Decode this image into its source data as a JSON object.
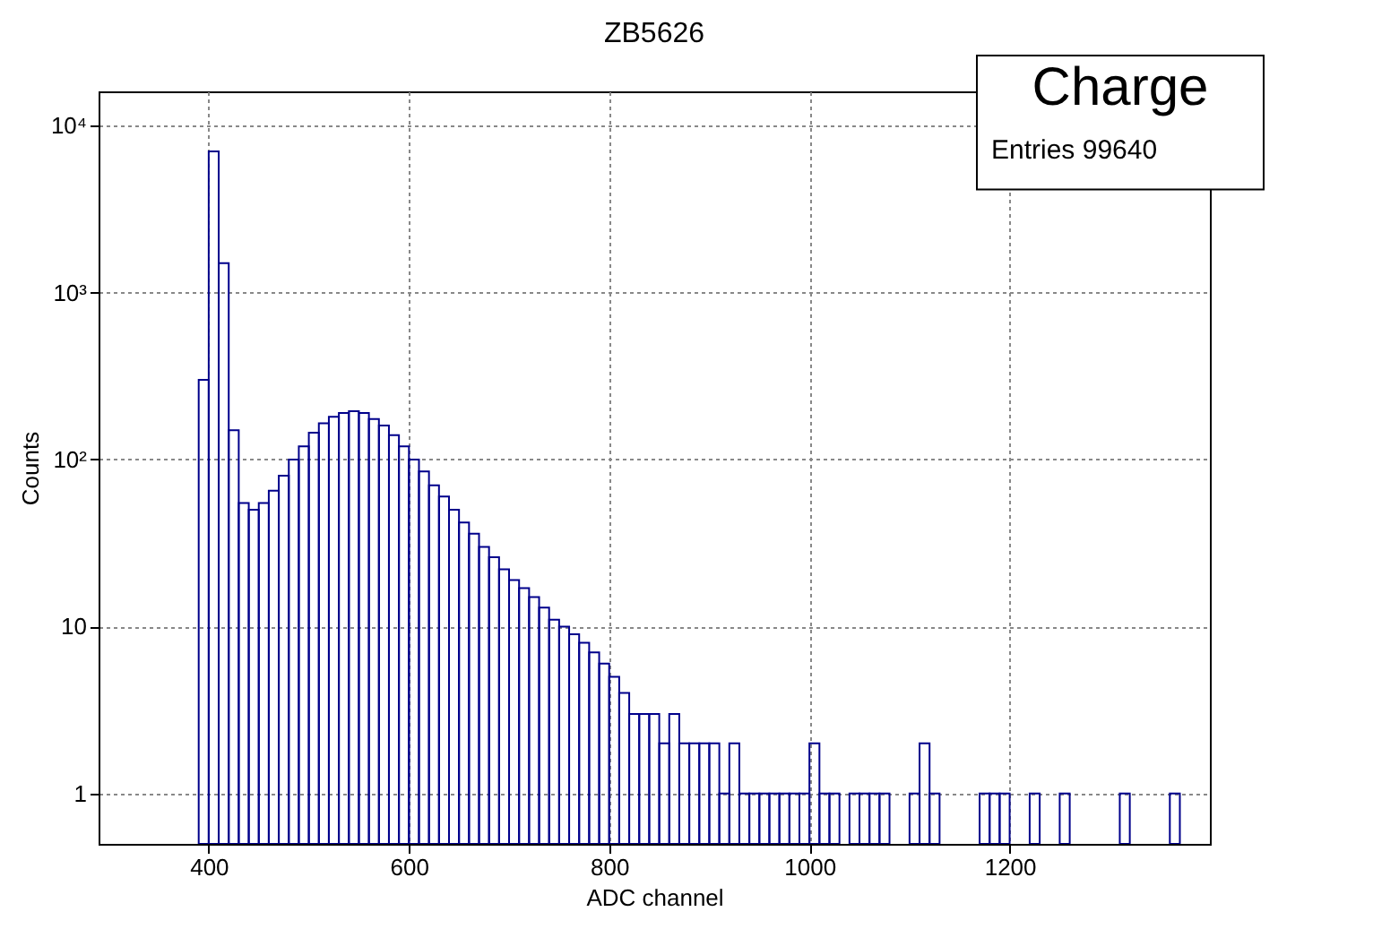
{
  "chart_data": {
    "type": "histogram",
    "title": "ZB5626",
    "xlabel": "ADC channel",
    "ylabel": "Counts",
    "annotations": [
      "Charge",
      "Entries   99640"
    ],
    "color": "#00008b",
    "log": "y",
    "grid": true,
    "xlim": [
      290,
      1400
    ],
    "xticks": [
      400,
      600,
      800,
      1000,
      1200
    ],
    "ylim": [
      0.5,
      16000
    ],
    "yticks": [
      1,
      10,
      {
        "value": 100,
        "label": "10²"
      },
      {
        "value": 1000,
        "label": "10³"
      },
      {
        "value": 10000,
        "label": "10⁴"
      }
    ],
    "bins": [
      290,
      300,
      310,
      320,
      330,
      340,
      350,
      360,
      370,
      380,
      390,
      400,
      410,
      420,
      430,
      440,
      450,
      460,
      470,
      480,
      490,
      500,
      510,
      520,
      530,
      540,
      550,
      560,
      570,
      580,
      590,
      600,
      610,
      620,
      630,
      640,
      650,
      660,
      670,
      680,
      690,
      700,
      710,
      720,
      730,
      740,
      750,
      760,
      770,
      780,
      790,
      800,
      810,
      820,
      830,
      840,
      850,
      860,
      870,
      880,
      890,
      900,
      910,
      920,
      930,
      940,
      950,
      960,
      970,
      980,
      990,
      1000,
      1010,
      1020,
      1030,
      1040,
      1050,
      1060,
      1070,
      1080,
      1090,
      1100,
      1110,
      1120,
      1130,
      1140,
      1150,
      1160,
      1170,
      1180,
      1190,
      1200,
      1210,
      1220,
      1230,
      1240,
      1250,
      1260,
      1270,
      1280,
      1290,
      1300,
      1310,
      1320,
      1330,
      1340,
      1350,
      1360,
      1370,
      1380,
      1390,
      1400
    ],
    "values": [
      null,
      null,
      null,
      null,
      null,
      null,
      null,
      null,
      null,
      null,
      300,
      7000,
      1500,
      150,
      55,
      50,
      55,
      65,
      80,
      100,
      120,
      145,
      165,
      180,
      190,
      195,
      190,
      175,
      160,
      140,
      120,
      100,
      85,
      70,
      60,
      50,
      42,
      36,
      30,
      26,
      22,
      19,
      17,
      15,
      13,
      11,
      10,
      9,
      8,
      7,
      6,
      5,
      4,
      3,
      3,
      3,
      2,
      3,
      2,
      2,
      2,
      2,
      1,
      2,
      1,
      1,
      1,
      1,
      1,
      1,
      1,
      2,
      1,
      1,
      null,
      1,
      1,
      1,
      1,
      null,
      null,
      1,
      2,
      1,
      null,
      null,
      null,
      null,
      1,
      1,
      1,
      null,
      null,
      1,
      null,
      null,
      1,
      null,
      null,
      null,
      null,
      null,
      1,
      null,
      null,
      null,
      null,
      1,
      null,
      null,
      null
    ]
  }
}
